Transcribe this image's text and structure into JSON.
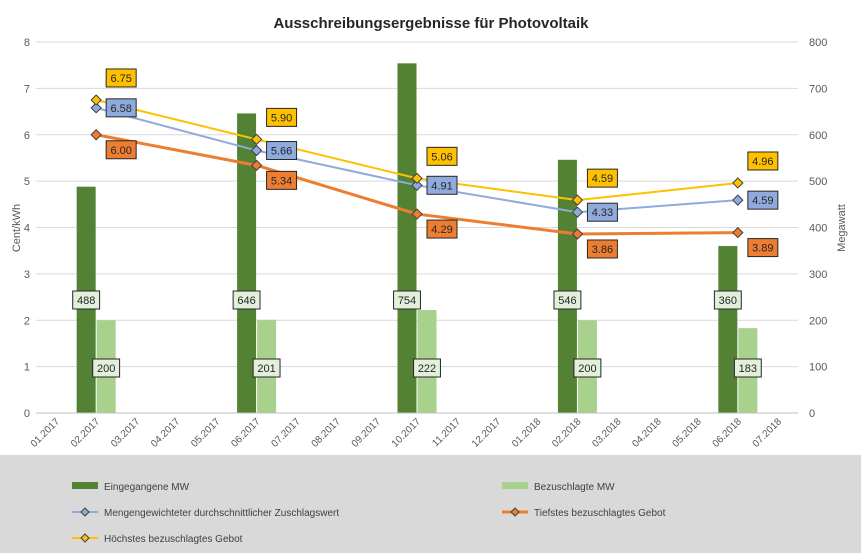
{
  "chart_data": {
    "type": "bar+line",
    "title": "Ausschreibungsergebnisse für Photovoltaik",
    "ylabel_left": "Cent/kWh",
    "ylabel_right": "Megawatt",
    "ylim_left": [
      0,
      8
    ],
    "ylim_right": [
      0,
      800
    ],
    "yticks_left": [
      "0",
      "1",
      "2",
      "3",
      "4",
      "5",
      "6",
      "7",
      "8"
    ],
    "yticks_right": [
      "0",
      "100",
      "200",
      "300",
      "400",
      "500",
      "600",
      "700",
      "800"
    ],
    "categories": [
      "01.2017",
      "02.2017",
      "03.2017",
      "04.2017",
      "05.2017",
      "06.2017",
      "07.2017",
      "08.2017",
      "09.2017",
      "10.2017",
      "11.2017",
      "12.2017",
      "01.2018",
      "02.2018",
      "03.2018",
      "04.2018",
      "05.2018",
      "06.2018",
      "07.2018"
    ],
    "grid": "horizontal",
    "legend_position": "bottom",
    "series": [
      {
        "name": "Eingegangene MW",
        "kind": "bar",
        "axis": "right",
        "color": "#548235",
        "values": [
          null,
          488,
          null,
          null,
          null,
          646,
          null,
          null,
          null,
          754,
          null,
          null,
          null,
          546,
          null,
          null,
          null,
          360,
          null
        ],
        "labels": [
          null,
          "488",
          null,
          null,
          null,
          "646",
          null,
          null,
          null,
          "754",
          null,
          null,
          null,
          "546",
          null,
          null,
          null,
          "360",
          null
        ]
      },
      {
        "name": "Bezuschlagte MW",
        "kind": "bar",
        "axis": "right",
        "color": "#a9d18e",
        "values": [
          null,
          200,
          null,
          null,
          null,
          201,
          null,
          null,
          null,
          222,
          null,
          null,
          null,
          200,
          null,
          null,
          null,
          183,
          null
        ],
        "labels": [
          null,
          "200",
          null,
          null,
          null,
          "201",
          null,
          null,
          null,
          "222",
          null,
          null,
          null,
          "200",
          null,
          null,
          null,
          "183",
          null
        ]
      },
      {
        "name": "Mengengewichteter durchschnittlicher Zuschlagswert",
        "kind": "line",
        "axis": "left",
        "color": "#8faadc",
        "label_fill": "#8faadc",
        "values": [
          null,
          6.58,
          null,
          null,
          null,
          5.66,
          null,
          null,
          null,
          4.91,
          null,
          null,
          null,
          4.33,
          null,
          null,
          null,
          4.59,
          null
        ],
        "labels": [
          null,
          "6.58",
          null,
          null,
          null,
          "5.66",
          null,
          null,
          null,
          "4.91",
          null,
          null,
          null,
          "4.33",
          null,
          null,
          null,
          "4.59",
          null
        ]
      },
      {
        "name": "Tiefstes bezuschlagtes Gebot",
        "kind": "line",
        "axis": "left",
        "color": "#ed7d31",
        "label_fill": "#ed7d31",
        "values": [
          null,
          6.0,
          null,
          null,
          null,
          5.34,
          null,
          null,
          null,
          4.29,
          null,
          null,
          null,
          3.86,
          null,
          null,
          null,
          3.89,
          null
        ],
        "labels": [
          null,
          "6.00",
          null,
          null,
          null,
          "5.34",
          null,
          null,
          null,
          "4.29",
          null,
          null,
          null,
          "3.86",
          null,
          null,
          null,
          "3.89",
          null
        ]
      },
      {
        "name": "Höchstes bezuschlagtes Gebot",
        "kind": "line",
        "axis": "left",
        "color": "#ffc000",
        "label_fill": "#ffc000",
        "values": [
          null,
          6.75,
          null,
          null,
          null,
          5.9,
          null,
          null,
          null,
          5.06,
          null,
          null,
          null,
          4.59,
          null,
          null,
          null,
          4.96,
          null
        ],
        "labels": [
          null,
          "6.75",
          null,
          null,
          null,
          "5.90",
          null,
          null,
          null,
          "5.06",
          null,
          null,
          null,
          "4.59",
          null,
          null,
          null,
          "4.96",
          null
        ]
      }
    ]
  }
}
